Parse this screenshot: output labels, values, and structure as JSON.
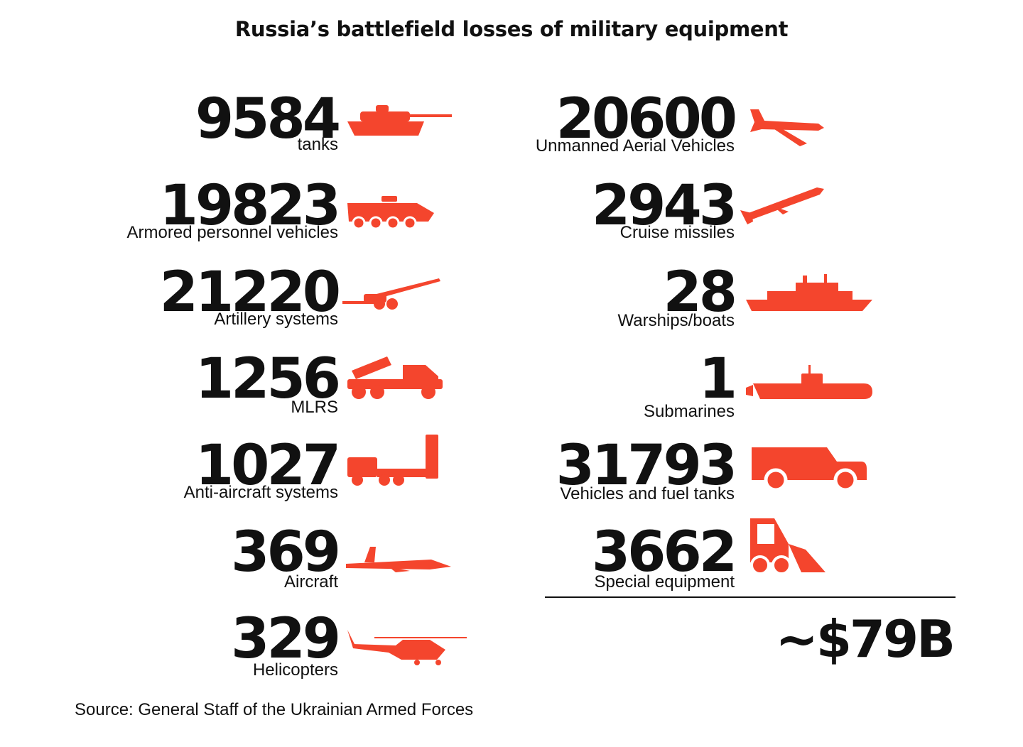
{
  "title": "Russia’s battlefield losses of military equipment",
  "accent_color": "#f4452d",
  "left_items": [
    {
      "value": "9584",
      "label": "tanks",
      "icon": "tank-icon"
    },
    {
      "value": "19823",
      "label": "Armored personnel vehicles",
      "icon": "apc-icon"
    },
    {
      "value": "21220",
      "label": "Artillery systems",
      "icon": "artillery-icon"
    },
    {
      "value": "1256",
      "label": "MLRS",
      "icon": "mlrs-icon"
    },
    {
      "value": "1027",
      "label": "Anti-aircraft systems",
      "icon": "anti-aircraft-icon"
    },
    {
      "value": "369",
      "label": "Aircraft",
      "icon": "aircraft-icon"
    },
    {
      "value": "329",
      "label": "Helicopters",
      "icon": "helicopter-icon"
    }
  ],
  "right_items": [
    {
      "value": "20600",
      "label": "Unmanned Aerial Vehicles",
      "icon": "drone-icon"
    },
    {
      "value": "2943",
      "label": "Cruise missiles",
      "icon": "missile-icon"
    },
    {
      "value": "28",
      "label": "Warships/boats",
      "icon": "warship-icon"
    },
    {
      "value": "1",
      "label": "Submarines",
      "icon": "submarine-icon"
    },
    {
      "value": "31793",
      "label": "Vehicles and fuel tanks",
      "icon": "vehicle-icon"
    },
    {
      "value": "3662",
      "label": "Special equipment",
      "icon": "special-equipment-icon"
    }
  ],
  "total": "~$79B",
  "source": "Source: General Staff of the Ukrainian Armed Forces"
}
